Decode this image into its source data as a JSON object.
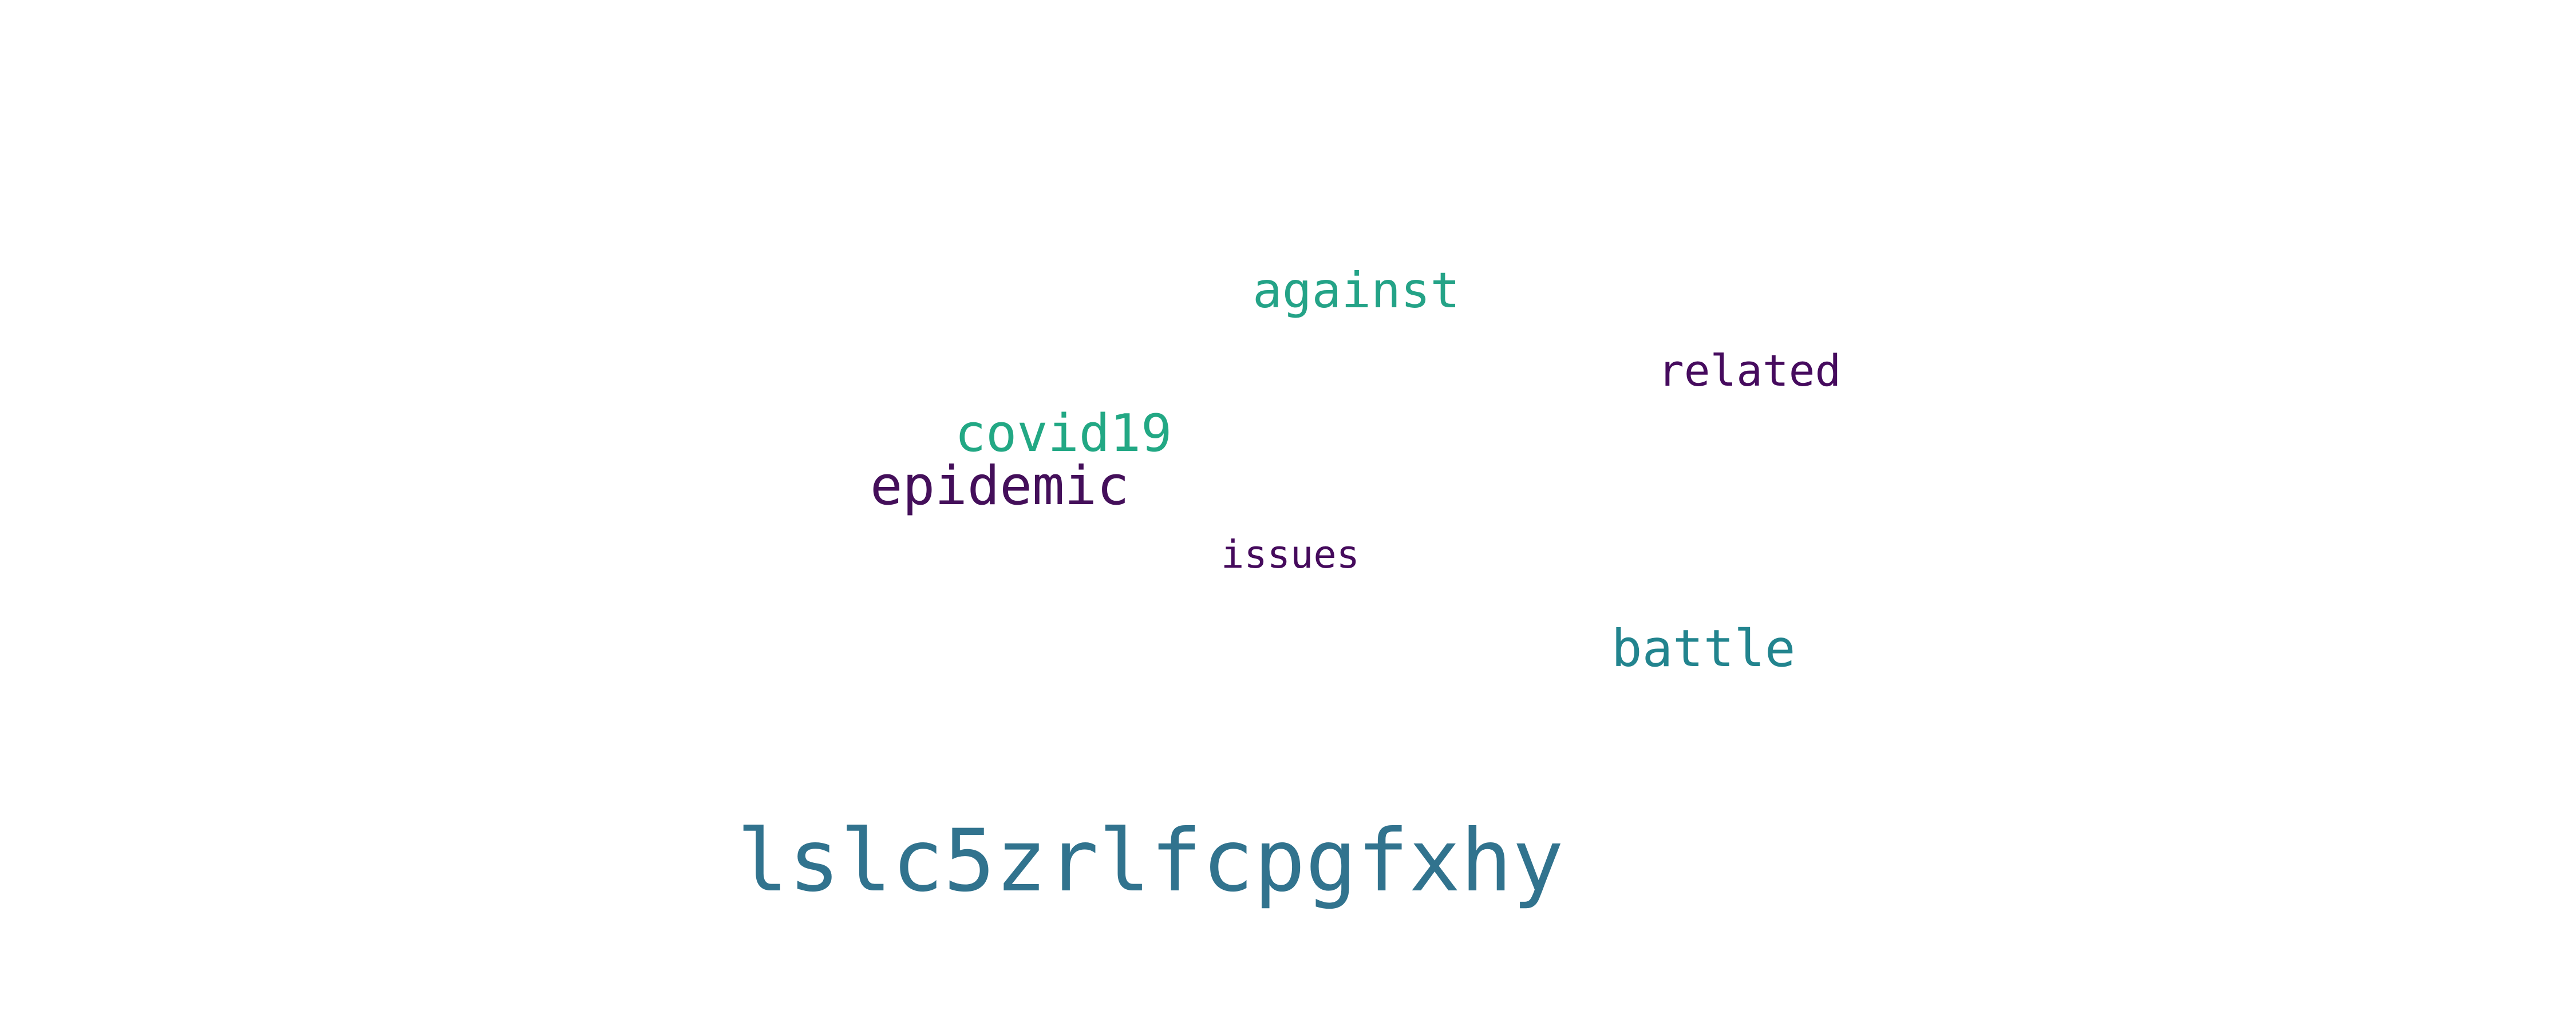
{
  "word_cloud": {
    "background": "#ffffff",
    "words": [
      {
        "text": "lslc5zrlfcpgfxhy",
        "color": "#31738e"
      },
      {
        "text": "epidemic",
        "color": "#440f5a"
      },
      {
        "text": "covid19",
        "color": "#22a884"
      },
      {
        "text": "battle",
        "color": "#22848e"
      },
      {
        "text": "against",
        "color": "#24a387"
      },
      {
        "text": "related",
        "color": "#460b5e"
      },
      {
        "text": "issues",
        "color": "#450a5c"
      }
    ]
  }
}
